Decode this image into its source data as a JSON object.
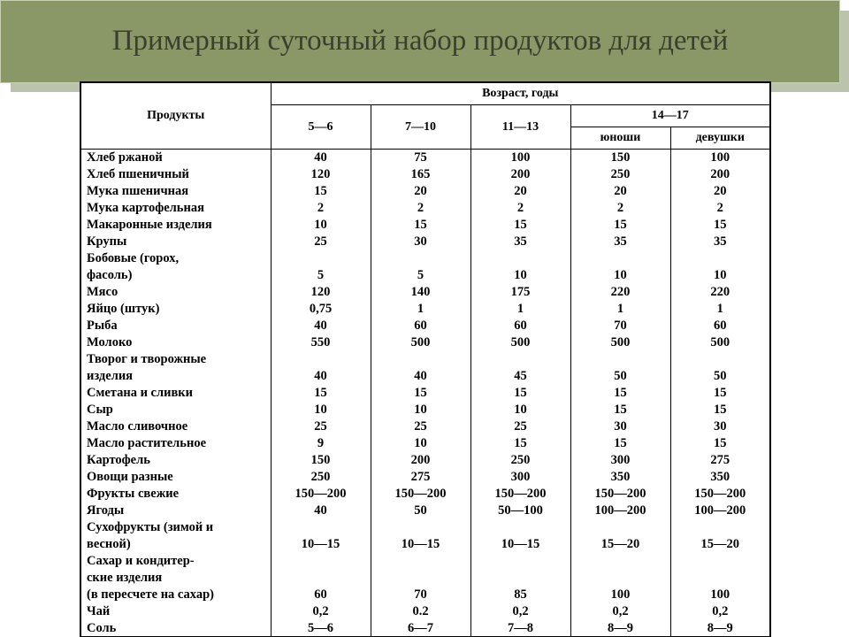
{
  "title": "Примерный суточный набор продуктов для детей",
  "colors": {
    "banner_bg": "#8a9868",
    "banner_shadow": "#6b7a48",
    "banner_border": "#c8d0b0",
    "title_text": "#3a3f2e",
    "table_border": "#000000",
    "page_bg": "#ffffff"
  },
  "header": {
    "products": "Продукты",
    "age": "Возраст, годы",
    "c1": "5—6",
    "c2": "7—10",
    "c3": "11—13",
    "c45": "14—17",
    "c4": "юноши",
    "c5": "девушки"
  },
  "rows": [
    {
      "p": "Хлеб ржаной",
      "v": [
        "40",
        "75",
        "100",
        "150",
        "100"
      ]
    },
    {
      "p": "Хлеб пшеничный",
      "v": [
        "120",
        "165",
        "200",
        "250",
        "200"
      ]
    },
    {
      "p": "Мука пшеничная",
      "v": [
        "15",
        "20",
        "20",
        "20",
        "20"
      ]
    },
    {
      "p": "Мука картофельная",
      "v": [
        "2",
        "2",
        "2",
        "2",
        "2"
      ]
    },
    {
      "p": "Макаронные изделия",
      "v": [
        "10",
        "15",
        "15",
        "15",
        "15"
      ]
    },
    {
      "p": "Крупы",
      "v": [
        "25",
        "30",
        "35",
        "35",
        "35"
      ]
    },
    {
      "p": "Бобовые (горох,",
      "v": [
        "",
        "",
        "",
        "",
        ""
      ]
    },
    {
      "p": "фасоль)",
      "v": [
        "5",
        "5",
        "10",
        "10",
        "10"
      ]
    },
    {
      "p": "Мясо",
      "v": [
        "120",
        "140",
        "175",
        "220",
        "220"
      ]
    },
    {
      "p": "Яйцо (штук)",
      "v": [
        "0,75",
        "1",
        "1",
        "1",
        "1"
      ]
    },
    {
      "p": "Рыба",
      "v": [
        "40",
        "60",
        "60",
        "70",
        "60"
      ]
    },
    {
      "p": "Молоко",
      "v": [
        "550",
        "500",
        "500",
        "500",
        "500"
      ]
    },
    {
      "p": "Творог и творожные",
      "v": [
        "",
        "",
        "",
        "",
        ""
      ]
    },
    {
      "p": "изделия",
      "v": [
        "40",
        "40",
        "45",
        "50",
        "50"
      ]
    },
    {
      "p": "Сметана и сливки",
      "v": [
        "15",
        "15",
        "15",
        "15",
        "15"
      ]
    },
    {
      "p": "Сыр",
      "v": [
        "10",
        "10",
        "10",
        "15",
        "15"
      ]
    },
    {
      "p": "Масло сливочное",
      "v": [
        "25",
        "25",
        "25",
        "30",
        "30"
      ]
    },
    {
      "p": "Масло растительное",
      "v": [
        "9",
        "10",
        "15",
        "15",
        "15"
      ]
    },
    {
      "p": "Картофель",
      "v": [
        "150",
        "200",
        "250",
        "300",
        "275"
      ]
    },
    {
      "p": "Овощи разные",
      "v": [
        "250",
        "275",
        "300",
        "350",
        "350"
      ]
    },
    {
      "p": "Фрукты свежие",
      "v": [
        "150—200",
        "150—200",
        "150—200",
        "150—200",
        "150—200"
      ]
    },
    {
      "p": "Ягоды",
      "v": [
        "40",
        "50",
        "50—100",
        "100—200",
        "100—200"
      ]
    },
    {
      "p": "Сухофрукты (зимой и",
      "v": [
        "",
        "",
        "",
        "",
        ""
      ]
    },
    {
      "p": "весной)",
      "v": [
        "10—15",
        "10—15",
        "10—15",
        "15—20",
        "15—20"
      ]
    },
    {
      "p": "Сахар и кондитер-",
      "v": [
        "",
        "",
        "",
        "",
        ""
      ]
    },
    {
      "p": "ские изделия",
      "v": [
        "",
        "",
        "",
        "",
        ""
      ]
    },
    {
      "p": "(в пересчете на сахар)",
      "v": [
        "60",
        "70",
        "85",
        "100",
        "100"
      ]
    },
    {
      "p": "Чай",
      "v": [
        "0,2",
        "0.2",
        "0,2",
        "0,2",
        "0,2"
      ]
    },
    {
      "p": "Соль",
      "v": [
        "5—6",
        "6—7",
        "7—8",
        "8—9",
        "8—9"
      ]
    }
  ]
}
